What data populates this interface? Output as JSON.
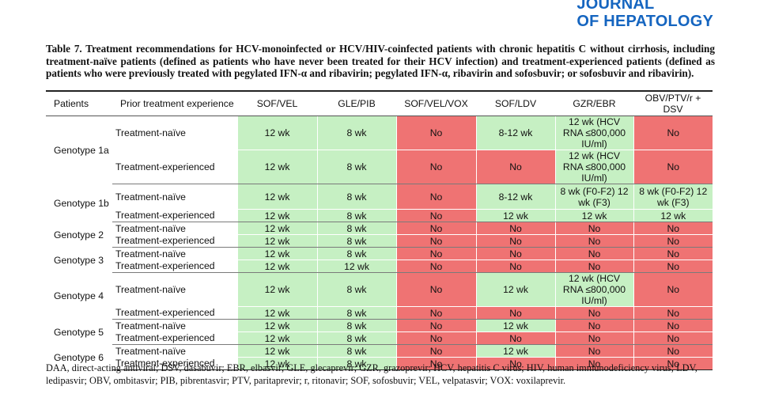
{
  "journal": {
    "line1": "JOURNAL",
    "line2": "OF HEPATOLOGY"
  },
  "caption": "Table 7. Treatment recommendations for HCV-monoinfected or HCV/HIV-coinfected patients with chronic hepatitis C without cirrhosis, including treatment-naïve patients (defined as patients who have never been treated for their HCV infection) and treatment-experienced patients (defined as patients who were previously treated with pegylated IFN-α and ribavirin; pegylated IFN-α, ribavirin and sofosbuvir; or sofosbuvir and ribavirin).",
  "colors": {
    "green": "#c6f0c3",
    "red": "#ef7373",
    "journal": "#1565c0"
  },
  "table": {
    "headers": [
      "Patients",
      "Prior treatment experience",
      "SOF/VEL",
      "GLE/PIB",
      "SOF/VEL/VOX",
      "SOF/LDV",
      "GZR/EBR",
      "OBV/PTV/r + DSV"
    ],
    "genotypes": [
      {
        "name": "Genotype 1a",
        "rows": [
          {
            "prior": "Treatment-naïve",
            "cells": [
              {
                "text": "12 wk",
                "ok": true
              },
              {
                "text": "8 wk",
                "ok": true
              },
              {
                "text": "No",
                "ok": false
              },
              {
                "text": "8-12 wk",
                "ok": true
              },
              {
                "text": "12 wk (HCV RNA ≤800,000 IU/ml)",
                "ok": true
              },
              {
                "text": "No",
                "ok": false
              }
            ]
          },
          {
            "prior": "Treatment-experienced",
            "cells": [
              {
                "text": "12 wk",
                "ok": true
              },
              {
                "text": "8 wk",
                "ok": true
              },
              {
                "text": "No",
                "ok": false
              },
              {
                "text": "No",
                "ok": false
              },
              {
                "text": "12 wk (HCV RNA ≤800,000 IU/ml)",
                "ok": true
              },
              {
                "text": "No",
                "ok": false
              }
            ]
          }
        ]
      },
      {
        "name": "Genotype 1b",
        "rows": [
          {
            "prior": "Treatment-naïve",
            "cells": [
              {
                "text": "12 wk",
                "ok": true
              },
              {
                "text": "8 wk",
                "ok": true
              },
              {
                "text": "No",
                "ok": false
              },
              {
                "text": "8-12 wk",
                "ok": true
              },
              {
                "text": "8 wk (F0-F2) 12 wk (F3)",
                "ok": true
              },
              {
                "text": "8 wk (F0-F2) 12 wk (F3)",
                "ok": true
              }
            ]
          },
          {
            "prior": "Treatment-experienced",
            "cells": [
              {
                "text": "12 wk",
                "ok": true
              },
              {
                "text": "8 wk",
                "ok": true
              },
              {
                "text": "No",
                "ok": false
              },
              {
                "text": "12 wk",
                "ok": true
              },
              {
                "text": "12 wk",
                "ok": true
              },
              {
                "text": "12 wk",
                "ok": true
              }
            ]
          }
        ]
      },
      {
        "name": "Genotype 2",
        "rows": [
          {
            "prior": "Treatment-naïve",
            "cells": [
              {
                "text": "12 wk",
                "ok": true
              },
              {
                "text": "8 wk",
                "ok": true
              },
              {
                "text": "No",
                "ok": false
              },
              {
                "text": "No",
                "ok": false
              },
              {
                "text": "No",
                "ok": false
              },
              {
                "text": "No",
                "ok": false
              }
            ]
          },
          {
            "prior": "Treatment-experienced",
            "cells": [
              {
                "text": "12 wk",
                "ok": true
              },
              {
                "text": "8 wk",
                "ok": true
              },
              {
                "text": "No",
                "ok": false
              },
              {
                "text": "No",
                "ok": false
              },
              {
                "text": "No",
                "ok": false
              },
              {
                "text": "No",
                "ok": false
              }
            ]
          }
        ]
      },
      {
        "name": "Genotype 3",
        "rows": [
          {
            "prior": "Treatment-naïve",
            "cells": [
              {
                "text": "12 wk",
                "ok": true
              },
              {
                "text": "8 wk",
                "ok": true
              },
              {
                "text": "No",
                "ok": false
              },
              {
                "text": "No",
                "ok": false
              },
              {
                "text": "No",
                "ok": false
              },
              {
                "text": "No",
                "ok": false
              }
            ]
          },
          {
            "prior": "Treatment-experienced",
            "cells": [
              {
                "text": "12 wk",
                "ok": true
              },
              {
                "text": "12 wk",
                "ok": true
              },
              {
                "text": "No",
                "ok": false
              },
              {
                "text": "No",
                "ok": false
              },
              {
                "text": "No",
                "ok": false
              },
              {
                "text": "No",
                "ok": false
              }
            ]
          }
        ]
      },
      {
        "name": "Genotype 4",
        "rows": [
          {
            "prior": "Treatment-naïve",
            "cells": [
              {
                "text": "12 wk",
                "ok": true
              },
              {
                "text": "8 wk",
                "ok": true
              },
              {
                "text": "No",
                "ok": false
              },
              {
                "text": "12 wk",
                "ok": true
              },
              {
                "text": "12 wk (HCV RNA ≤800,000 IU/ml)",
                "ok": true
              },
              {
                "text": "No",
                "ok": false
              }
            ]
          },
          {
            "prior": "Treatment-experienced",
            "cells": [
              {
                "text": "12 wk",
                "ok": true
              },
              {
                "text": "8 wk",
                "ok": true
              },
              {
                "text": "No",
                "ok": false
              },
              {
                "text": "No",
                "ok": false
              },
              {
                "text": "No",
                "ok": false
              },
              {
                "text": "No",
                "ok": false
              }
            ]
          }
        ]
      },
      {
        "name": "Genotype 5",
        "rows": [
          {
            "prior": "Treatment-naïve",
            "cells": [
              {
                "text": "12 wk",
                "ok": true
              },
              {
                "text": "8 wk",
                "ok": true
              },
              {
                "text": "No",
                "ok": false
              },
              {
                "text": "12 wk",
                "ok": true
              },
              {
                "text": "No",
                "ok": false
              },
              {
                "text": "No",
                "ok": false
              }
            ]
          },
          {
            "prior": "Treatment-experienced",
            "cells": [
              {
                "text": "12 wk",
                "ok": true
              },
              {
                "text": "8 wk",
                "ok": true
              },
              {
                "text": "No",
                "ok": false
              },
              {
                "text": "No",
                "ok": false
              },
              {
                "text": "No",
                "ok": false
              },
              {
                "text": "No",
                "ok": false
              }
            ]
          }
        ]
      },
      {
        "name": "Genotype 6",
        "rows": [
          {
            "prior": "Treatment-naïve",
            "cells": [
              {
                "text": "12 wk",
                "ok": true
              },
              {
                "text": "8 wk",
                "ok": true
              },
              {
                "text": "No",
                "ok": false
              },
              {
                "text": "12 wk",
                "ok": true
              },
              {
                "text": "No",
                "ok": false
              },
              {
                "text": "No",
                "ok": false
              }
            ]
          },
          {
            "prior": "Treatment-experienced",
            "cells": [
              {
                "text": "12 wk",
                "ok": true
              },
              {
                "text": "8 wk",
                "ok": true
              },
              {
                "text": "No",
                "ok": false
              },
              {
                "text": "No",
                "ok": false
              },
              {
                "text": "No",
                "ok": false
              },
              {
                "text": "No",
                "ok": false
              }
            ]
          }
        ]
      }
    ]
  },
  "footnote": "DAA, direct-acting antiviral; DSV, dasabuvir; EBR, elbasvir; GLE, glecaprevir; GZR, grazoprevir; HCV, hepatitis C virus; HIV, human immunodeficiency virus; LDV, ledipasvir; OBV, ombitasvir; PIB, pibrentasvir; PTV, paritaprevir; r, ritonavir; SOF, sofosbuvir; VEL, velpatasvir; VOX: voxilaprevir."
}
